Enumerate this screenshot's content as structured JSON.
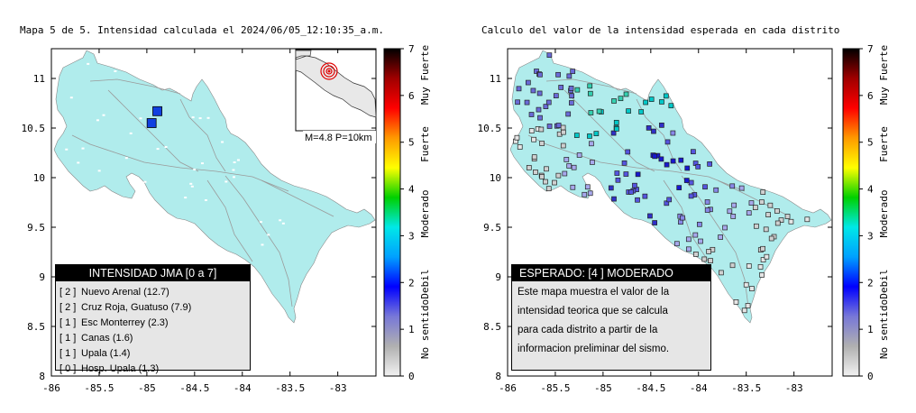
{
  "left": {
    "title": "Mapa 5 de 5. Intensidad calculada el 2024/06/05_12:10:35_a.m.",
    "inset_label": "M=4.8 P=10km",
    "legend_title": "INTENSIDAD JMA [0 a 7]",
    "stations": [
      {
        "level": "[ 2 ]",
        "name": "Nuevo Arenal (12.7)",
        "lon": -84.89,
        "lat": 10.67
      },
      {
        "level": "[ 2 ]",
        "name": "Cruz Roja, Guatuso (7.9)",
        "lon": -84.95,
        "lat": 10.55
      },
      {
        "level": "[ 1 ]",
        "name": "Esc Monterrey (2.3)"
      },
      {
        "level": "[ 1 ]",
        "name": "Canas (1.6)"
      },
      {
        "level": "[ 1 ]",
        "name": "Upala (1.4)"
      },
      {
        "level": "[ 0 ]",
        "name": "Hosp. Upala (1.3)"
      }
    ]
  },
  "right": {
    "title": "Calculo del valor de la intensidad esperada en cada distrito",
    "info_title": "ESPERADO: [4 ] MODERADO",
    "info_lines": [
      "Este mapa muestra el valor de la",
      "intensidad teorica que se calcula",
      "para cada distrito a partir de la",
      "informacion preliminar del sismo."
    ]
  },
  "axes": {
    "lon_ticks": [
      "-86",
      "-85.5",
      "-85",
      "-84.5",
      "-84",
      "-83.5",
      "-83"
    ],
    "lat_ticks": [
      "11",
      "10.5",
      "10",
      "9.5",
      "9",
      "8.5",
      "8"
    ],
    "lon_range": [
      -86,
      -82.6
    ],
    "lat_range": [
      8,
      11.3
    ]
  },
  "colorbar": {
    "ticks": [
      "0",
      "1",
      "2",
      "3",
      "4",
      "5",
      "6",
      "7"
    ],
    "categories": [
      "No sentido",
      "Debil",
      "Moderado",
      "Fuerte",
      "Muy Fuerte"
    ],
    "gradient": [
      "#f2f2f2",
      "#b0b0b0",
      "#7878d8",
      "#0000ff",
      "#00a0ff",
      "#00e8e8",
      "#00d000",
      "#ffff00",
      "#ff9900",
      "#ff0000",
      "#a00000",
      "#000000"
    ]
  },
  "colors": {
    "land": "#b0ecec",
    "station_marker": "#1040e0",
    "epicenter": "#e00000"
  }
}
